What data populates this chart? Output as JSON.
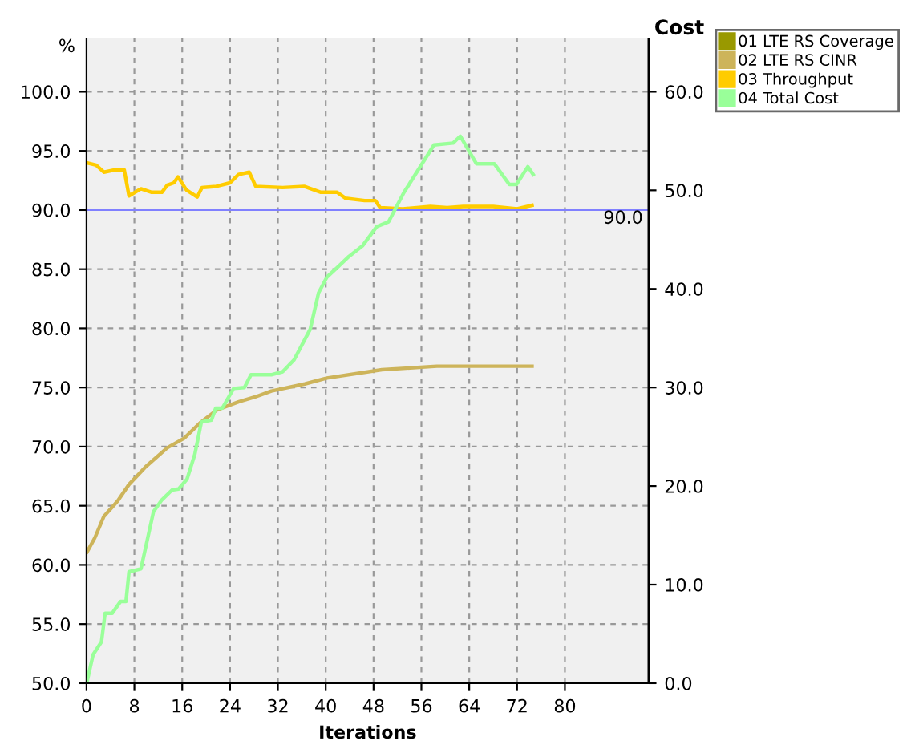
{
  "chart_data": {
    "type": "line",
    "xlabel": "Iterations",
    "ylabel": "%",
    "y2label": "Cost",
    "xlim": [
      0,
      94
    ],
    "xticks": [
      0,
      8,
      16,
      24,
      32,
      40,
      48,
      56,
      64,
      72,
      80
    ],
    "ylim": [
      50,
      104.5
    ],
    "yticks": [
      {
        "value": 50,
        "label": "50.0"
      },
      {
        "value": 55,
        "label": "55.0"
      },
      {
        "value": 60,
        "label": "60.0"
      },
      {
        "value": 65,
        "label": "65.0"
      },
      {
        "value": 70,
        "label": "70.0"
      },
      {
        "value": 75,
        "label": "75.0"
      },
      {
        "value": 80,
        "label": "80.0"
      },
      {
        "value": 85,
        "label": "85.0"
      },
      {
        "value": 90,
        "label": "90.0"
      },
      {
        "value": 95,
        "label": "95.0"
      },
      {
        "value": 100,
        "label": "100.0"
      }
    ],
    "y2lim": [
      0,
      65.4
    ],
    "y2ticks": [
      {
        "value": 0,
        "label": "0.0"
      },
      {
        "value": 10,
        "label": "10.0"
      },
      {
        "value": 20,
        "label": "20.0"
      },
      {
        "value": 30,
        "label": "30.0"
      },
      {
        "value": 40,
        "label": "40.0"
      },
      {
        "value": 50,
        "label": "50.0"
      },
      {
        "value": 60,
        "label": "60.0"
      }
    ],
    "grid": true,
    "legend": "top right",
    "marker": "none",
    "line_style": "solid",
    "ref_lines": [
      {
        "axis": "y",
        "value": 90,
        "label": "90.0",
        "color": "#8080ff"
      }
    ],
    "series": [
      {
        "name": "01 LTE RS Coverage",
        "color": "#999900"
      },
      {
        "name": "02 LTE RS CINR",
        "color": "#cdb45a",
        "x": [
          0.1,
          1.4,
          2.9,
          5.2,
          7.1,
          9.9,
          13.5,
          16.3,
          19.2,
          21.8,
          25.5,
          28.2,
          30.9,
          36.5,
          40.2,
          49.4,
          58.6,
          67.8,
          74.5
        ],
        "values": [
          61.1,
          62.3,
          64.1,
          65.4,
          66.8,
          68.3,
          69.9,
          70.7,
          72.1,
          73.1,
          73.8,
          74.2,
          74.7,
          75.3,
          75.8,
          76.5,
          76.8,
          76.8,
          76.8
        ]
      },
      {
        "name": "03 Throughput",
        "color": "#ffcc00",
        "x": [
          0,
          1.6,
          2.9,
          4.8,
          6.3,
          7.1,
          9.1,
          10.9,
          12.6,
          13.5,
          14.6,
          15.3,
          16.7,
          18.5,
          19.3,
          21.7,
          24.0,
          25.4,
          27.2,
          28.3,
          32.8,
          36.4,
          39.2,
          41.9,
          43.3,
          46.5,
          48.3,
          49.1,
          52.9,
          57.5,
          60.3,
          63.0,
          68.0,
          72.0,
          74.5
        ],
        "values": [
          94.0,
          93.8,
          93.2,
          93.4,
          93.4,
          91.2,
          91.8,
          91.5,
          91.5,
          92.1,
          92.3,
          92.8,
          91.7,
          91.1,
          91.9,
          92.0,
          92.3,
          93.0,
          93.2,
          92.0,
          91.9,
          92.0,
          91.5,
          91.5,
          91.0,
          90.8,
          90.8,
          90.2,
          90.1,
          90.3,
          90.2,
          90.3,
          90.3,
          90.1,
          90.4
        ]
      },
      {
        "name": "04 Total Cost",
        "color": "#99ff99",
        "axis": "y2",
        "x": [
          0.1,
          1.1,
          2.5,
          3.1,
          4.3,
          5.7,
          6.6,
          7.1,
          9.1,
          11.2,
          12.6,
          14.3,
          15.4,
          16.8,
          18.1,
          19.2,
          20.9,
          21.6,
          22.7,
          24.6,
          26.4,
          27.5,
          31.0,
          32.8,
          34.7,
          37.4,
          38.8,
          40.2,
          42.0,
          43.9,
          46.2,
          48.5,
          50.5,
          53.1,
          58.1,
          61.3,
          62.5,
          65.2,
          68.2,
          70.7,
          71.9,
          73.8,
          74.7
        ],
        "values": [
          0.2,
          2.9,
          4.2,
          7.1,
          7.1,
          8.3,
          8.3,
          11.3,
          11.6,
          17.4,
          18.6,
          19.6,
          19.7,
          20.7,
          23.2,
          26.5,
          26.7,
          27.9,
          27.9,
          29.9,
          30.0,
          31.3,
          31.3,
          31.6,
          32.8,
          35.9,
          39.6,
          41.2,
          42.2,
          43.3,
          44.4,
          46.3,
          46.8,
          49.8,
          54.6,
          54.8,
          55.5,
          52.7,
          52.7,
          50.6,
          50.6,
          52.4,
          51.6
        ]
      }
    ]
  }
}
